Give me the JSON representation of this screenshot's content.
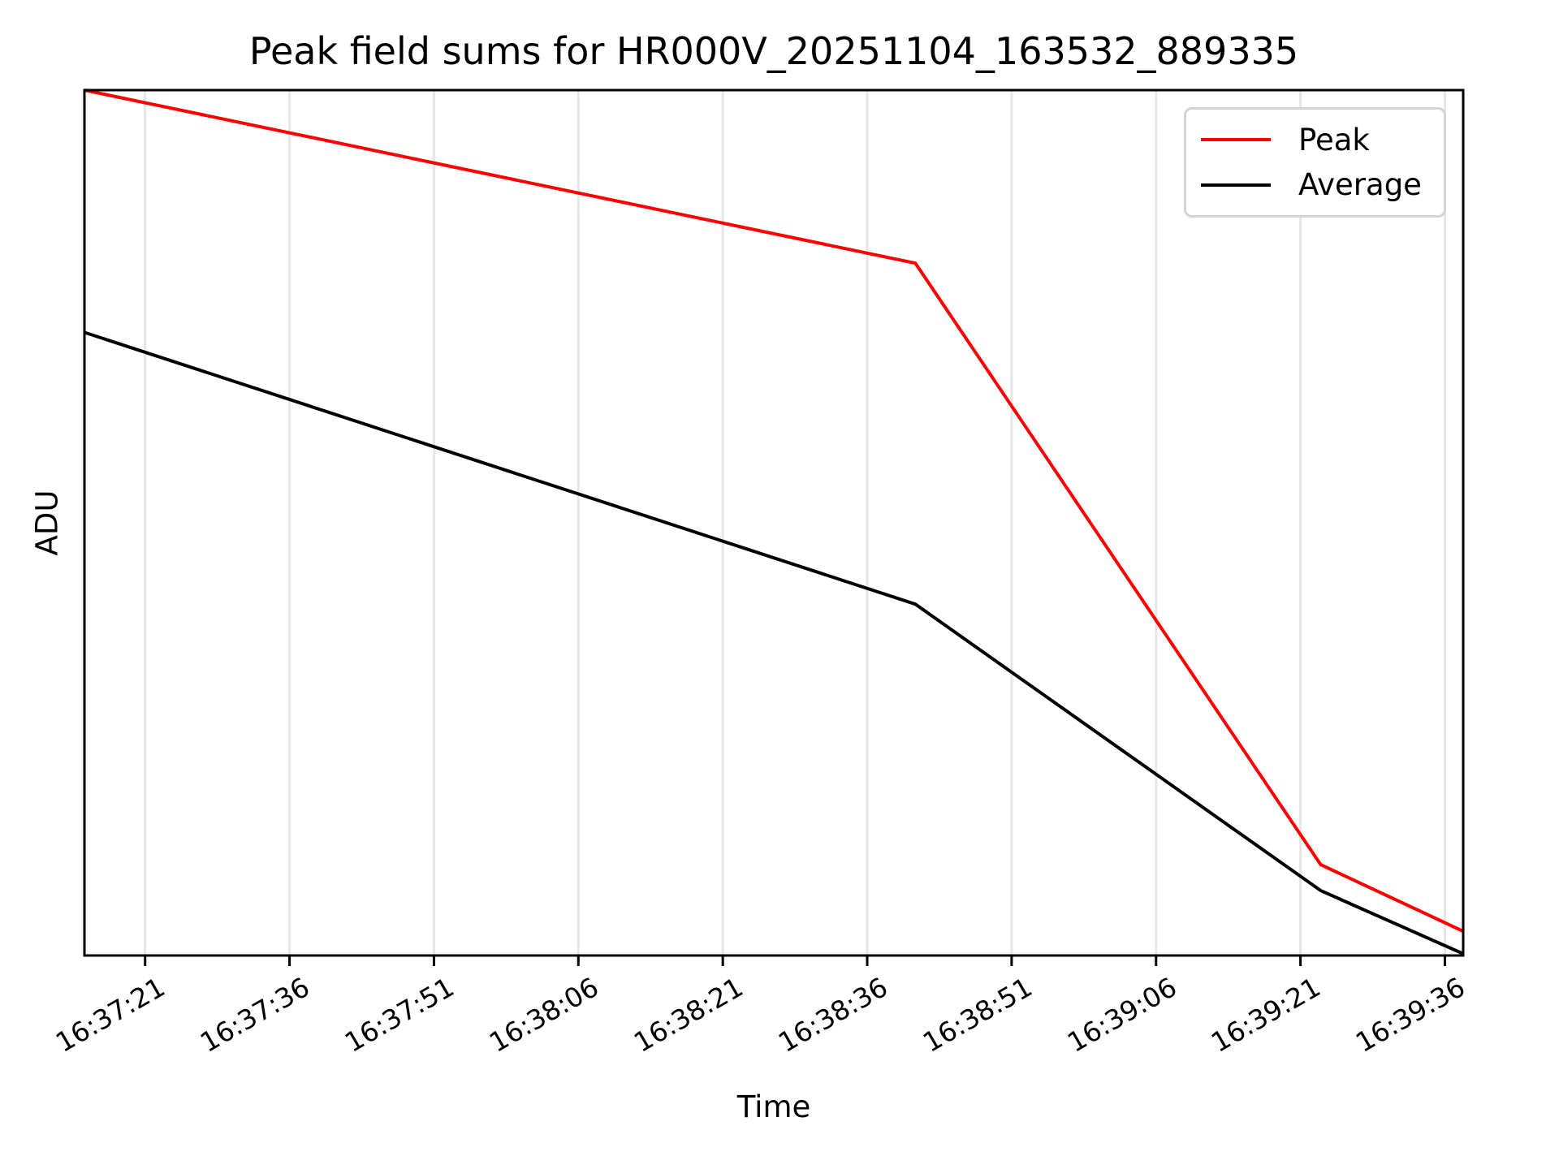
{
  "chart_data": {
    "type": "line",
    "title": "Peak field sums for HR000V_20251104_163532_889335",
    "xlabel": "Time",
    "ylabel": "ADU",
    "x_ticks": [
      "16:37:21",
      "16:37:36",
      "16:37:51",
      "16:38:06",
      "16:38:21",
      "16:38:36",
      "16:38:51",
      "16:39:06",
      "16:39:21",
      "16:39:36"
    ],
    "x_domain": [
      "16:37:14.7",
      "16:39:37.9"
    ],
    "y_domain": [
      0,
      1
    ],
    "y_note": "no y tick labels shown in figure; series values normalized 0-1 of axis height",
    "grid": "vertical-gridlines-only",
    "legend_position": "upper-right",
    "series": [
      {
        "name": "Peak",
        "color": "#ff0000",
        "x": [
          "16:37:14.7",
          "16:38:41.0",
          "16:39:23.1",
          "16:39:37.9"
        ],
        "y": [
          1.0,
          0.8,
          0.105,
          0.028
        ]
      },
      {
        "name": "Average",
        "color": "#000000",
        "x": [
          "16:37:14.7",
          "16:38:41.0",
          "16:39:23.1",
          "16:39:37.9"
        ],
        "y": [
          0.72,
          0.406,
          0.075,
          0.002
        ]
      }
    ],
    "colors": {
      "grid": "#e6e6e6",
      "spine": "#000000",
      "tick": "#000000",
      "legend_border": "#d3d3d3",
      "background": "#ffffff"
    }
  }
}
